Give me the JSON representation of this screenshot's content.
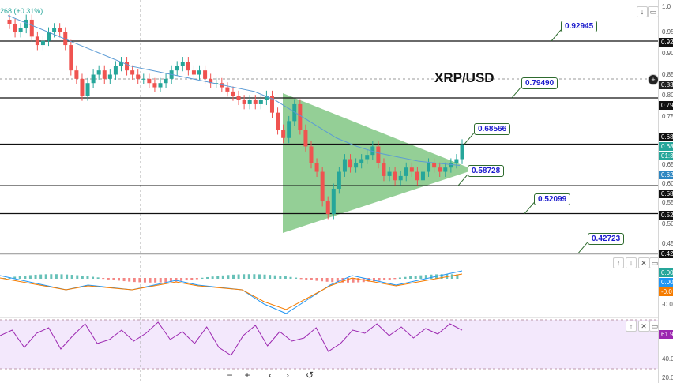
{
  "symbol_title": "XRP/USD",
  "legend_change": "268 (+0.31%)",
  "levels": [
    {
      "value": "0.92945",
      "price": 0.92945
    },
    {
      "value": "0.79490",
      "price": 0.7949
    },
    {
      "value": "0.68566",
      "price": 0.68566
    },
    {
      "value": "0.58728",
      "price": 0.58728
    },
    {
      "value": "0.52099",
      "price": 0.52099
    },
    {
      "value": "0.42723",
      "price": 0.42723
    }
  ],
  "axis": {
    "ticks": [
      "0.95",
      "0.90",
      "0.85",
      "0.80",
      "0.75",
      "0.65",
      "0.60",
      "0.55",
      "0.50",
      "0.45"
    ],
    "tags": [
      {
        "text": "0.92",
        "color": "#111111"
      },
      {
        "text": "0.83",
        "color": "#222222"
      },
      {
        "text": "0.79",
        "color": "#111111"
      },
      {
        "text": "0.68",
        "color": "#111111"
      },
      {
        "text": "0.68",
        "color": "#26a69a"
      },
      {
        "text": "01:3",
        "color": "#26a69a"
      },
      {
        "text": "0.62",
        "color": "#2e86c1"
      },
      {
        "text": "0.58",
        "color": "#111111"
      },
      {
        "text": "0.52",
        "color": "#111111"
      },
      {
        "text": "0.42",
        "color": "#111111"
      }
    ],
    "top_label": "1.0"
  },
  "macd_axis": {
    "tags": [
      {
        "text": "0.00",
        "color": "#26a69a"
      },
      {
        "text": "0.00",
        "color": "#2196f3"
      },
      {
        "text": "-0.0",
        "color": "#f57c00"
      }
    ],
    "tick": "-0.0"
  },
  "rsi_axis": {
    "tag": "61.9",
    "tick_40": "40.0",
    "tick_20": "20.0"
  },
  "nav": {
    "zoom_out": "−",
    "zoom_in": "+",
    "prev": "‹",
    "next": "›",
    "reset": "↺"
  },
  "colors": {
    "up": "#26a69a",
    "down": "#ef5350",
    "triangle": "#4caf50",
    "ma": "#5b9bd5",
    "rsi": "#9c27b0"
  },
  "chart_data": {
    "type": "candlestick",
    "title": "XRP/USD",
    "close": [
      0.97,
      0.95,
      0.96,
      0.98,
      0.94,
      0.92,
      0.93,
      0.95,
      0.96,
      0.95,
      0.92,
      0.86,
      0.84,
      0.8,
      0.83,
      0.85,
      0.86,
      0.84,
      0.85,
      0.87,
      0.88,
      0.86,
      0.85,
      0.84,
      0.84,
      0.83,
      0.82,
      0.83,
      0.84,
      0.86,
      0.87,
      0.88,
      0.86,
      0.85,
      0.86,
      0.84,
      0.83,
      0.83,
      0.82,
      0.81,
      0.8,
      0.79,
      0.78,
      0.79,
      0.78,
      0.79,
      0.8,
      0.76,
      0.72,
      0.7,
      0.74,
      0.78,
      0.72,
      0.68,
      0.64,
      0.62,
      0.55,
      0.52,
      0.58,
      0.62,
      0.65,
      0.63,
      0.64,
      0.65,
      0.66,
      0.68,
      0.64,
      0.61,
      0.62,
      0.6,
      0.61,
      0.63,
      0.62,
      0.6,
      0.62,
      0.64,
      0.63,
      0.62,
      0.63,
      0.64,
      0.65,
      0.685
    ],
    "ma": [
      0.99,
      0.97,
      0.95,
      0.93,
      0.91,
      0.89,
      0.87,
      0.86,
      0.85,
      0.84,
      0.83,
      0.82,
      0.81,
      0.79,
      0.76,
      0.73,
      0.7,
      0.68,
      0.665,
      0.655,
      0.645,
      0.64,
      0.635
    ],
    "macd": [
      0.01,
      0.0,
      -0.01,
      -0.02,
      -0.01,
      -0.015,
      -0.02,
      -0.01,
      0.0,
      -0.01,
      -0.015,
      -0.02,
      -0.05,
      -0.07,
      -0.04,
      -0.01,
      0.01,
      0.0,
      -0.01,
      0.0,
      0.01,
      0.02
    ],
    "rsi": [
      55,
      62,
      40,
      58,
      65,
      38,
      55,
      70,
      45,
      50,
      62,
      48,
      58,
      72,
      50,
      60,
      45,
      66,
      40,
      30,
      55,
      68,
      42,
      60,
      48,
      52,
      65,
      35,
      45,
      62,
      58,
      70,
      55,
      66,
      52,
      64,
      57,
      70,
      61.9
    ]
  }
}
